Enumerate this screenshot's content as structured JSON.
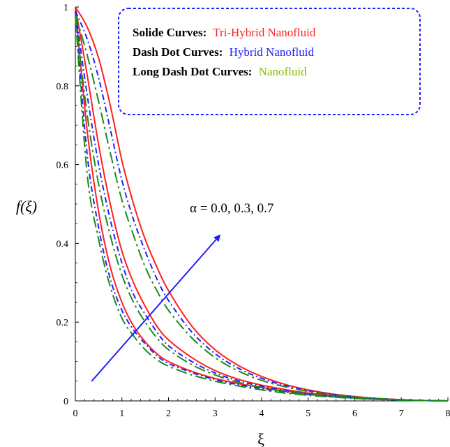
{
  "chart_data": {
    "type": "line",
    "title": "",
    "xlabel": "ξ",
    "ylabel": "f(ξ)",
    "xlim": [
      0,
      8
    ],
    "ylim": [
      0,
      1
    ],
    "x_ticks": [
      "0",
      "1",
      "2",
      "3",
      "4",
      "5",
      "6",
      "7",
      "8"
    ],
    "y_ticks": [
      "0",
      "0.2",
      "0.4",
      "0.6",
      "0.8",
      "1"
    ],
    "grid": false,
    "legend": {
      "position": "top-right",
      "entries": [
        {
          "label": "Solide Curves:",
          "value": "Tri-Hybrid Nanofluid",
          "color": "#ff2020"
        },
        {
          "label": "Dash Dot Curves:",
          "value": "Hybrid Nanofluid",
          "color": "#2020ff"
        },
        {
          "label": "Long Dash Dot Curves:",
          "value": "Nanofluid",
          "color": "#8ab800"
        }
      ],
      "border_color": "#2020ff"
    },
    "annotation": {
      "text": "α = 0.0, 0.3, 0.7",
      "arrow_from": [
        0.35,
        0.05
      ],
      "arrow_to": [
        3.1,
        0.42
      ],
      "color": "#2020ff"
    },
    "x": [
      0,
      0.25,
      0.5,
      0.75,
      1,
      1.25,
      1.5,
      1.75,
      2,
      2.5,
      3,
      3.5,
      4,
      4.5,
      5,
      5.5,
      6,
      6.5,
      7,
      7.5,
      8
    ],
    "series": [
      {
        "group": "Tri-Hybrid Nanofluid",
        "color": "#ff2020",
        "dash": "solid",
        "values": [
          1.0,
          0.69,
          0.48,
          0.34,
          0.25,
          0.19,
          0.15,
          0.12,
          0.1,
          0.075,
          0.057,
          0.044,
          0.034,
          0.025,
          0.018,
          0.012,
          0.008,
          0.005,
          0.003,
          0.001,
          0.0
        ]
      },
      {
        "group": "Tri-Hybrid Nanofluid",
        "color": "#ff2020",
        "dash": "solid",
        "values": [
          1.0,
          0.83,
          0.65,
          0.5,
          0.38,
          0.3,
          0.24,
          0.19,
          0.155,
          0.11,
          0.077,
          0.055,
          0.04,
          0.029,
          0.02,
          0.014,
          0.009,
          0.006,
          0.003,
          0.001,
          0.0
        ]
      },
      {
        "group": "Tri-Hybrid Nanofluid",
        "color": "#ff2020",
        "dash": "solid",
        "values": [
          1.0,
          0.95,
          0.87,
          0.75,
          0.61,
          0.5,
          0.41,
          0.34,
          0.28,
          0.19,
          0.13,
          0.09,
          0.062,
          0.042,
          0.028,
          0.018,
          0.011,
          0.006,
          0.003,
          0.001,
          0.0
        ]
      },
      {
        "group": "Hybrid Nanofluid",
        "color": "#2020ff",
        "dash": "dashdot",
        "values": [
          0.99,
          0.63,
          0.44,
          0.31,
          0.23,
          0.18,
          0.145,
          0.115,
          0.095,
          0.072,
          0.054,
          0.041,
          0.031,
          0.022,
          0.016,
          0.011,
          0.007,
          0.004,
          0.002,
          0.001,
          0.0
        ]
      },
      {
        "group": "Hybrid Nanofluid",
        "color": "#2020ff",
        "dash": "dashdot",
        "values": [
          0.99,
          0.78,
          0.6,
          0.46,
          0.35,
          0.27,
          0.22,
          0.175,
          0.14,
          0.1,
          0.071,
          0.051,
          0.037,
          0.026,
          0.018,
          0.012,
          0.008,
          0.005,
          0.002,
          0.001,
          0.0
        ]
      },
      {
        "group": "Hybrid Nanofluid",
        "color": "#2020ff",
        "dash": "dashdot",
        "values": [
          0.99,
          0.92,
          0.82,
          0.69,
          0.56,
          0.46,
          0.38,
          0.31,
          0.255,
          0.175,
          0.12,
          0.083,
          0.057,
          0.039,
          0.026,
          0.017,
          0.01,
          0.006,
          0.003,
          0.001,
          0.0
        ]
      },
      {
        "group": "Nanofluid",
        "color": "#1a8a1a",
        "dash": "longdashdot",
        "values": [
          0.98,
          0.58,
          0.41,
          0.29,
          0.21,
          0.165,
          0.13,
          0.105,
          0.088,
          0.066,
          0.05,
          0.038,
          0.028,
          0.02,
          0.014,
          0.01,
          0.006,
          0.004,
          0.002,
          0.001,
          0.0
        ]
      },
      {
        "group": "Nanofluid",
        "color": "#1a8a1a",
        "dash": "longdashdot",
        "values": [
          0.98,
          0.73,
          0.55,
          0.42,
          0.32,
          0.25,
          0.2,
          0.16,
          0.13,
          0.092,
          0.066,
          0.047,
          0.034,
          0.024,
          0.017,
          0.011,
          0.007,
          0.004,
          0.002,
          0.001,
          0.0
        ]
      },
      {
        "group": "Nanofluid",
        "color": "#1a8a1a",
        "dash": "longdashdot",
        "values": [
          0.98,
          0.88,
          0.76,
          0.63,
          0.51,
          0.42,
          0.34,
          0.28,
          0.23,
          0.16,
          0.11,
          0.076,
          0.052,
          0.036,
          0.024,
          0.016,
          0.01,
          0.006,
          0.003,
          0.001,
          0.0
        ]
      }
    ]
  }
}
